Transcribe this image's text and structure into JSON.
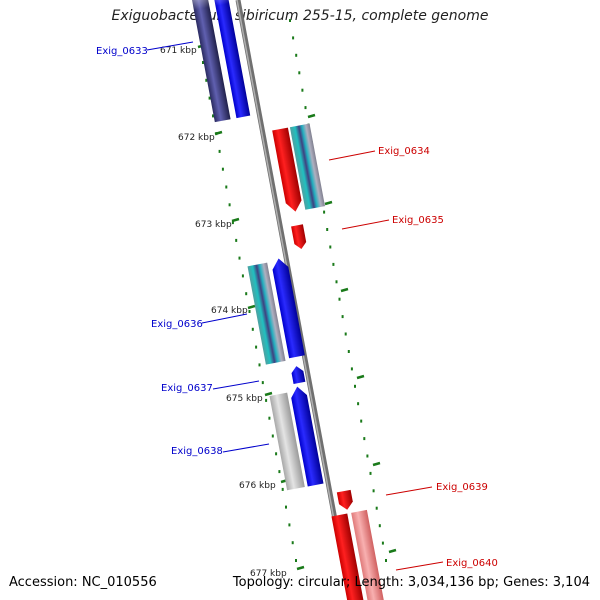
{
  "title": "Exiguobacterium sibiricum 255-15, complete genome",
  "footer": {
    "accession": "Accession: NC_010556",
    "summary": "Topology: circular; Length: 3,034,136 bp; Genes: 3,104"
  },
  "colors": {
    "forward_label": "#cc0000",
    "reverse_label": "#0000cc",
    "ticks": "#1a7a1a",
    "backbone": "#888888"
  },
  "ruler_ticks": [
    "671 kbp",
    "672 kbp",
    "673 kbp",
    "674 kbp",
    "675 kbp",
    "676 kbp",
    "677 kbp"
  ],
  "genes": [
    {
      "id": "Exig_0633",
      "strand": "reverse"
    },
    {
      "id": "Exig_0634",
      "strand": "forward"
    },
    {
      "id": "Exig_0635",
      "strand": "forward"
    },
    {
      "id": "Exig_0636",
      "strand": "reverse"
    },
    {
      "id": "Exig_0637",
      "strand": "reverse"
    },
    {
      "id": "Exig_0638",
      "strand": "reverse"
    },
    {
      "id": "Exig_0639",
      "strand": "forward"
    },
    {
      "id": "Exig_0640",
      "strand": "forward"
    }
  ]
}
